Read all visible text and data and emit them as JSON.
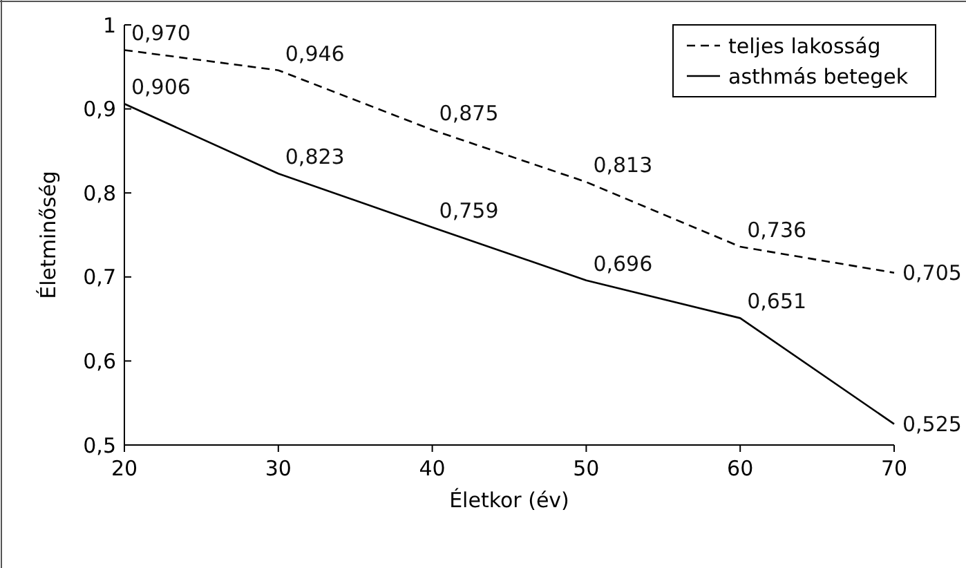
{
  "chart_data": {
    "type": "line",
    "xlabel": "Életkor (év)",
    "ylabel": "Életminőség",
    "x": [
      20,
      30,
      40,
      50,
      60,
      70
    ],
    "xlim": [
      20,
      70
    ],
    "xticks": [
      20,
      30,
      40,
      50,
      60,
      70
    ],
    "ylim": [
      0.5,
      1
    ],
    "yticks": [
      {
        "value": 0.5,
        "label": "0,5"
      },
      {
        "value": 0.6,
        "label": "0,6"
      },
      {
        "value": 0.7,
        "label": "0,7"
      },
      {
        "value": 0.8,
        "label": "0,8"
      },
      {
        "value": 0.9,
        "label": "0,9"
      },
      {
        "value": 1,
        "label": "1"
      }
    ],
    "series": [
      {
        "name": "teljes lakosság",
        "color": "#000000",
        "line_style": "dashed",
        "values": [
          0.97,
          0.946,
          0.875,
          0.813,
          0.736,
          0.705
        ],
        "value_labels": [
          "0,970",
          "0,946",
          "0,875",
          "0,813",
          "0,736",
          "0,705"
        ]
      },
      {
        "name": "asthmás betegek",
        "color": "#000000",
        "line_style": "solid",
        "values": [
          0.906,
          0.823,
          0.759,
          0.696,
          0.651,
          0.525
        ],
        "value_labels": [
          "0,906",
          "0,823",
          "0,759",
          "0,696",
          "0,651",
          "0,525"
        ]
      }
    ],
    "grid": false,
    "legend": "top right",
    "marker": "none"
  }
}
